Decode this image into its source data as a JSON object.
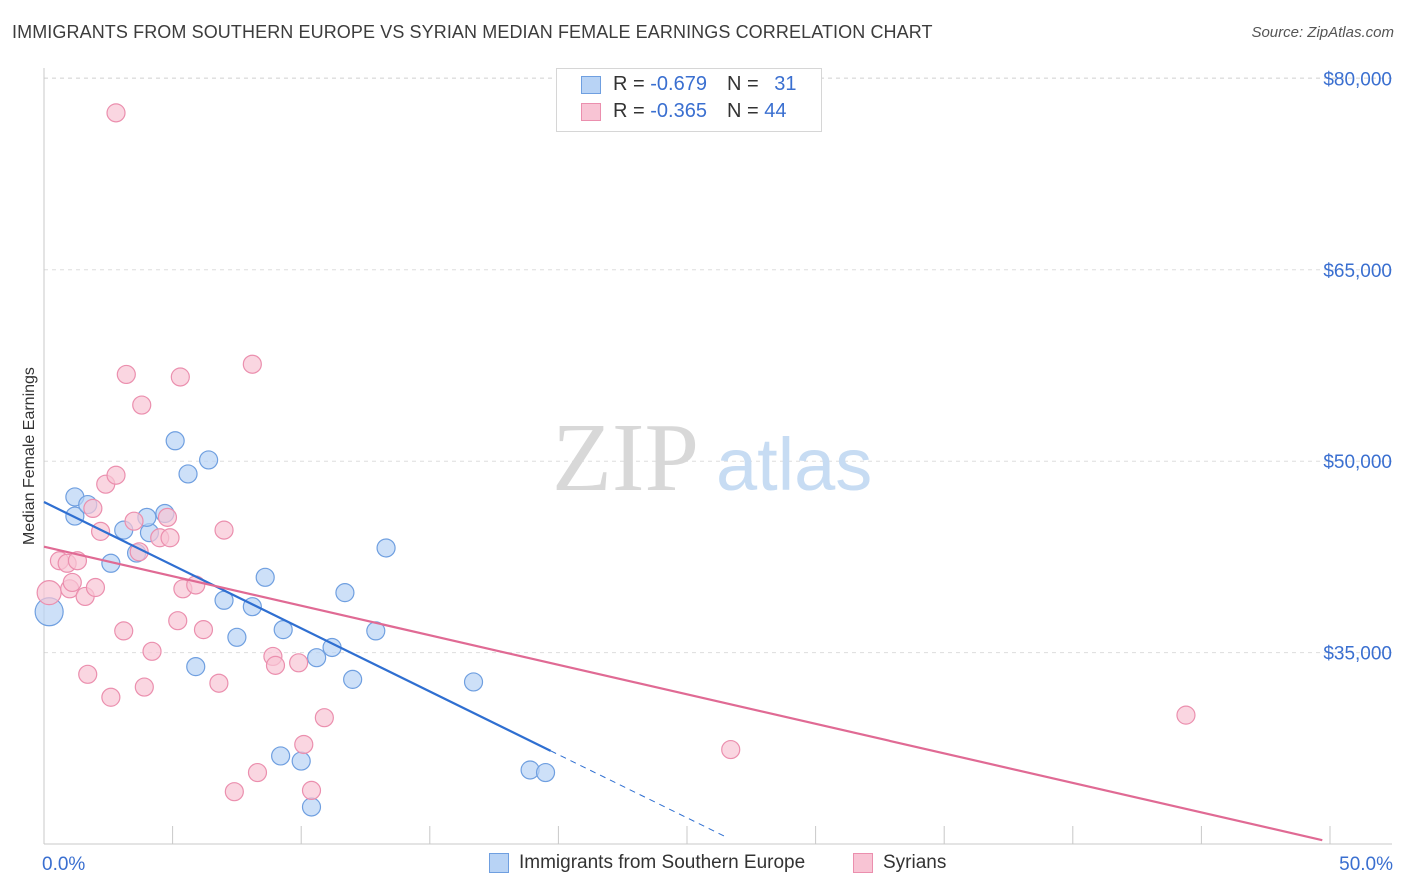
{
  "title": "IMMIGRANTS FROM SOUTHERN EUROPE VS SYRIAN MEDIAN FEMALE EARNINGS CORRELATION CHART",
  "source": "Source: ZipAtlas.com",
  "watermark": {
    "zip": "ZIP",
    "atlas": "atlas"
  },
  "colors": {
    "blue_fill": "#b8d3f5",
    "blue_stroke": "#6f9fe0",
    "blue_line": "#2f6fd1",
    "pink_fill": "#f8c4d4",
    "pink_stroke": "#eb8fae",
    "pink_line": "#e06a94",
    "axis_text": "#3a6fd0",
    "grid": "#dddddd"
  },
  "legend": {
    "rows": [
      {
        "r_label": "R = ",
        "r_value": "-0.679",
        "n_label": "N = ",
        "n_value": "31"
      },
      {
        "r_label": "R = ",
        "r_value": "-0.365",
        "n_label": "N = ",
        "n_value": "44"
      }
    ]
  },
  "bottom_legend": [
    "Immigrants from Southern Europe",
    "Syrians"
  ],
  "chart_data": {
    "type": "scatter",
    "title": "IMMIGRANTS FROM SOUTHERN EUROPE VS SYRIAN MEDIAN FEMALE EARNINGS CORRELATION CHART",
    "xlabel": "",
    "ylabel": "Median Female Earnings",
    "xlim": [
      0,
      50
    ],
    "ylim": [
      20000,
      82500
    ],
    "x_tick_labels": [
      "0.0%",
      "50.0%"
    ],
    "y_ticks": [
      35000,
      50000,
      65000,
      80000
    ],
    "y_tick_labels": [
      "$35,000",
      "$50,000",
      "$65,000",
      "$80,000"
    ],
    "grid": true,
    "legend_position": "top-center",
    "series": [
      {
        "name": "Immigrants from Southern Europe",
        "r": -0.679,
        "n": 31,
        "trend": {
          "x0": 0,
          "y0": 46800,
          "x1": 19.7,
          "y1": 27300,
          "dash_to_x": 26.5
        },
        "points": [
          [
            0.2,
            38200,
            14
          ],
          [
            1.2,
            45700,
            9
          ],
          [
            1.2,
            47200,
            9
          ],
          [
            1.7,
            46600,
            9
          ],
          [
            2.6,
            42000,
            9
          ],
          [
            3.1,
            44600,
            9
          ],
          [
            3.6,
            42800,
            9
          ],
          [
            4.1,
            44400,
            9
          ],
          [
            4.7,
            45900,
            9
          ],
          [
            5.1,
            51600,
            9
          ],
          [
            5.6,
            49000,
            9
          ],
          [
            5.9,
            33900,
            9
          ],
          [
            6.4,
            50100,
            9
          ],
          [
            7.0,
            39100,
            9
          ],
          [
            7.5,
            36200,
            9
          ],
          [
            8.1,
            38600,
            9
          ],
          [
            8.6,
            40900,
            9
          ],
          [
            9.2,
            26900,
            9
          ],
          [
            9.3,
            36800,
            9
          ],
          [
            10.0,
            26500,
            9
          ],
          [
            10.4,
            22900,
            9
          ],
          [
            10.6,
            34600,
            9
          ],
          [
            11.2,
            35400,
            9
          ],
          [
            11.7,
            39700,
            9
          ],
          [
            12.0,
            32900,
            9
          ],
          [
            12.9,
            36700,
            9
          ],
          [
            13.3,
            43200,
            9
          ],
          [
            16.7,
            32700,
            9
          ],
          [
            18.9,
            25800,
            9
          ],
          [
            19.5,
            25600,
            9
          ],
          [
            4.0,
            45600,
            9
          ]
        ]
      },
      {
        "name": "Syrians",
        "r": -0.365,
        "n": 44,
        "trend": {
          "x0": 0,
          "y0": 43300,
          "x1": 49.7,
          "y1": 20300
        },
        "points": [
          [
            0.2,
            39700,
            12
          ],
          [
            0.6,
            42200,
            9
          ],
          [
            0.9,
            42000,
            9
          ],
          [
            1.0,
            40000,
            9
          ],
          [
            1.1,
            40500,
            9
          ],
          [
            1.3,
            42200,
            9
          ],
          [
            1.6,
            39400,
            9
          ],
          [
            1.7,
            33300,
            9
          ],
          [
            1.9,
            46300,
            9
          ],
          [
            2.0,
            40100,
            9
          ],
          [
            2.2,
            44500,
            9
          ],
          [
            2.4,
            48200,
            9
          ],
          [
            2.6,
            31500,
            9
          ],
          [
            2.8,
            77300,
            9
          ],
          [
            2.8,
            48900,
            9
          ],
          [
            3.1,
            36700,
            9
          ],
          [
            3.2,
            56800,
            9
          ],
          [
            3.5,
            45300,
            9
          ],
          [
            3.7,
            42900,
            9
          ],
          [
            3.8,
            54400,
            9
          ],
          [
            3.9,
            32300,
            9
          ],
          [
            4.2,
            35100,
            9
          ],
          [
            4.5,
            44000,
            9
          ],
          [
            4.8,
            45600,
            9
          ],
          [
            4.9,
            44000,
            9
          ],
          [
            5.2,
            37500,
            9
          ],
          [
            5.3,
            56600,
            9
          ],
          [
            5.4,
            40000,
            9
          ],
          [
            5.9,
            40300,
            9
          ],
          [
            6.2,
            36800,
            9
          ],
          [
            6.8,
            32600,
            9
          ],
          [
            7.0,
            44600,
            9
          ],
          [
            7.4,
            24100,
            9
          ],
          [
            8.1,
            57600,
            9
          ],
          [
            8.3,
            25600,
            9
          ],
          [
            8.9,
            34700,
            9
          ],
          [
            9.0,
            34000,
            9
          ],
          [
            9.9,
            34200,
            9
          ],
          [
            10.1,
            27800,
            9
          ],
          [
            10.4,
            24200,
            9
          ],
          [
            10.9,
            29900,
            9
          ],
          [
            26.7,
            27400,
            9
          ],
          [
            44.4,
            30100,
            9
          ],
          [
            4.3,
            33300,
            0
          ]
        ]
      }
    ]
  }
}
